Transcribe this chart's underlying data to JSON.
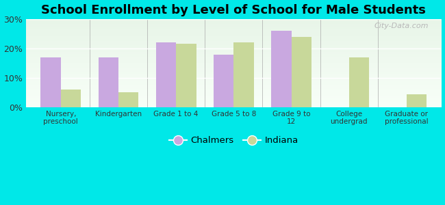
{
  "title": "School Enrollment by Level of School for Male Students",
  "categories": [
    "Nursery,\npreschool",
    "Kindergarten",
    "Grade 1 to 4",
    "Grade 5 to 8",
    "Grade 9 to\n12",
    "College\nundergrad",
    "Graduate or\nprofessional"
  ],
  "chalmers": [
    17,
    17,
    22,
    18,
    26,
    0,
    0
  ],
  "indiana": [
    6,
    5,
    21.5,
    22,
    24,
    17,
    4.5
  ],
  "chalmers_color": "#c9a8e0",
  "indiana_color": "#c8d89a",
  "background_color": "#00e8e8",
  "plot_bg_top": "#e8f5e8",
  "plot_bg_bottom": "#f8fff8",
  "ylim": [
    0,
    30
  ],
  "yticks": [
    0,
    10,
    20,
    30
  ],
  "ytick_labels": [
    "0%",
    "10%",
    "20%",
    "30%"
  ],
  "legend_chalmers": "Chalmers",
  "legend_indiana": "Indiana",
  "title_fontsize": 13,
  "bar_width": 0.35,
  "figsize": [
    6.5,
    3.0
  ],
  "dpi": 100
}
